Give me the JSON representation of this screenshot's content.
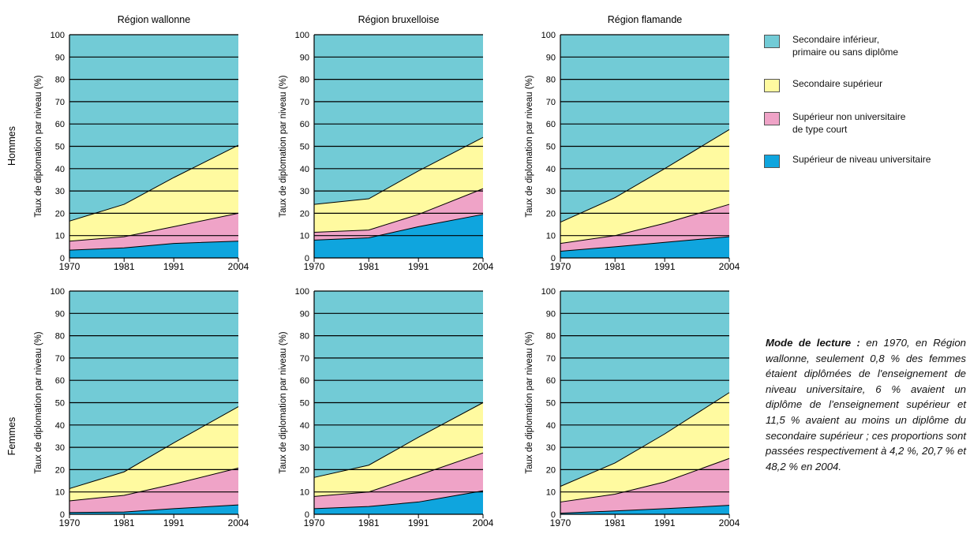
{
  "colors": {
    "sec_inf": "#72CBD6",
    "sec_sup": "#FFFAA0",
    "sup_court": "#EFA3C7",
    "sup_univ": "#0FA5DE",
    "grid": "#000000"
  },
  "legend": [
    {
      "key": "sec_inf",
      "label": "Secondaire inférieur,\nprimaire ou sans diplôme"
    },
    {
      "key": "sec_sup",
      "label": "Secondaire supérieur"
    },
    {
      "key": "sup_court",
      "label": "Supérieur non universitaire\nde type court"
    },
    {
      "key": "sup_univ",
      "label": "Supérieur de niveau universitaire"
    }
  ],
  "note": {
    "lead": "Mode de lecture :",
    "text": " en 1970, en Région wallonne, seulement 0,8 % des femmes étaient diplômées de l'enseignement de niveau universitaire, 6 % avaient un diplôme de l’enseignement supérieur et 11,5 % avaient au moins un diplôme du secondaire supérieur ; ces proportions sont passées respectivement à 4,2 %, 20,7 % et 48,2 % en 2004."
  },
  "row_labels": [
    "Hommes",
    "Femmes"
  ],
  "chart_data": [
    {
      "type": "area",
      "title": "Région wallonne",
      "row": "Hommes",
      "ylabel": "Taux de diplomation par niveau (%)",
      "x": [
        1970,
        1981,
        1991,
        2004
      ],
      "ylim": [
        0,
        100
      ],
      "yticks": [
        0,
        10,
        20,
        30,
        40,
        50,
        60,
        70,
        80,
        90,
        100
      ],
      "series": [
        {
          "name": "Supérieur de niveau universitaire",
          "values": [
            3.5,
            4.5,
            6.5,
            7.5
          ]
        },
        {
          "name": "Supérieur non universitaire de type court",
          "values": [
            7.5,
            9.5,
            14,
            20
          ]
        },
        {
          "name": "Secondaire supérieur",
          "values": [
            16.5,
            24,
            36,
            50.5
          ]
        }
      ]
    },
    {
      "type": "area",
      "title": "Région bruxelloise",
      "row": "Hommes",
      "ylabel": "Taux de diplomation par niveau (%)",
      "x": [
        1970,
        1981,
        1991,
        2004
      ],
      "ylim": [
        0,
        100
      ],
      "yticks": [
        0,
        10,
        20,
        30,
        40,
        50,
        60,
        70,
        80,
        90,
        100
      ],
      "series": [
        {
          "name": "Supérieur de niveau universitaire",
          "values": [
            8,
            9,
            14,
            19.5
          ]
        },
        {
          "name": "Supérieur non universitaire de type court",
          "values": [
            11.5,
            12.5,
            19.5,
            31
          ]
        },
        {
          "name": "Secondaire supérieur",
          "values": [
            24,
            26.5,
            39,
            54
          ]
        }
      ]
    },
    {
      "type": "area",
      "title": "Région flamande",
      "row": "Hommes",
      "ylabel": "Taux de diplomation par niveau (%)",
      "x": [
        1970,
        1981,
        1991,
        2004
      ],
      "ylim": [
        0,
        100
      ],
      "yticks": [
        0,
        10,
        20,
        30,
        40,
        50,
        60,
        70,
        80,
        90,
        100
      ],
      "series": [
        {
          "name": "Supérieur de niveau universitaire",
          "values": [
            3,
            5,
            7,
            9.5
          ]
        },
        {
          "name": "Supérieur non universitaire de type court",
          "values": [
            6.5,
            10,
            15.5,
            24
          ]
        },
        {
          "name": "Secondaire supérieur",
          "values": [
            16,
            27,
            40,
            57.5
          ]
        }
      ]
    },
    {
      "type": "area",
      "title": "",
      "row": "Femmes",
      "ylabel": "Taux de diplomation par niveau (%)",
      "x": [
        1970,
        1981,
        1991,
        2004
      ],
      "ylim": [
        0,
        100
      ],
      "yticks": [
        0,
        10,
        20,
        30,
        40,
        50,
        60,
        70,
        80,
        90,
        100
      ],
      "series": [
        {
          "name": "Supérieur de niveau universitaire",
          "values": [
            0.8,
            1,
            2.5,
            4.2
          ]
        },
        {
          "name": "Supérieur non universitaire de type court",
          "values": [
            6,
            8.5,
            13.5,
            20.7
          ]
        },
        {
          "name": "Secondaire supérieur",
          "values": [
            11.5,
            19,
            32,
            48.2
          ]
        }
      ]
    },
    {
      "type": "area",
      "title": "",
      "row": "Femmes",
      "ylabel": "Taux de diplomation par niveau (%)",
      "x": [
        1970,
        1981,
        1991,
        2004
      ],
      "ylim": [
        0,
        100
      ],
      "yticks": [
        0,
        10,
        20,
        30,
        40,
        50,
        60,
        70,
        80,
        90,
        100
      ],
      "series": [
        {
          "name": "Supérieur de niveau universitaire",
          "values": [
            2.5,
            3.5,
            5.5,
            10.5
          ]
        },
        {
          "name": "Supérieur non universitaire de type court",
          "values": [
            8,
            10,
            17.5,
            27.5
          ]
        },
        {
          "name": "Secondaire supérieur",
          "values": [
            16.5,
            22,
            34.5,
            50
          ]
        }
      ]
    },
    {
      "type": "area",
      "title": "",
      "row": "Femmes",
      "ylabel": "Taux de diplomation par niveau (%)",
      "x": [
        1970,
        1981,
        1991,
        2004
      ],
      "ylim": [
        0,
        100
      ],
      "yticks": [
        0,
        10,
        20,
        30,
        40,
        50,
        60,
        70,
        80,
        90,
        100
      ],
      "series": [
        {
          "name": "Supérieur de niveau universitaire",
          "values": [
            0.5,
            1.5,
            2.5,
            4
          ]
        },
        {
          "name": "Supérieur non universitaire de type court",
          "values": [
            5.5,
            9,
            14.5,
            25
          ]
        },
        {
          "name": "Secondaire supérieur",
          "values": [
            12.5,
            23,
            36,
            54.5
          ]
        }
      ]
    }
  ]
}
